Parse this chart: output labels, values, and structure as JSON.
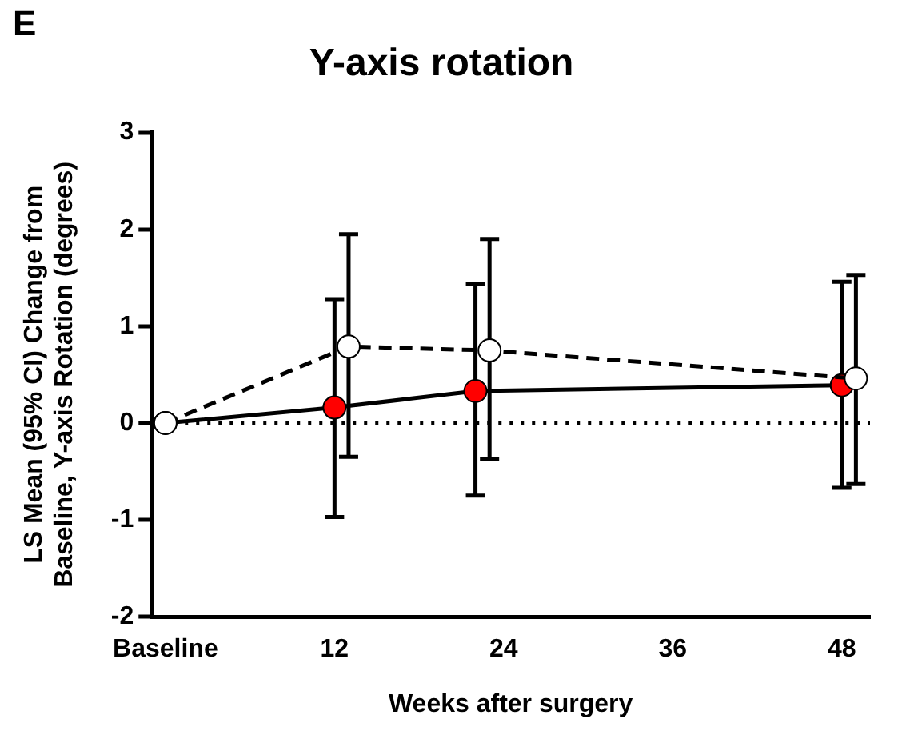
{
  "chart_data": {
    "type": "line",
    "title": "Y-axis rotation",
    "xlabel": "Weeks after surgery",
    "ylabel": "LS Mean (95% CI) Change from Baseline, Y-axis Rotation (degrees)",
    "annotations": [
      "E"
    ],
    "series": [
      {
        "color": "#ff0000",
        "line_style": "solid",
        "x": [
          0,
          12,
          22,
          48
        ],
        "values": [
          0,
          0.16,
          0.33,
          0.39
        ],
        "errors": [
          null,
          [
            -0.97,
            1.28
          ],
          [
            -0.75,
            1.44
          ],
          [
            -0.67,
            1.46
          ]
        ]
      },
      {
        "color": "#ffffff",
        "line_style": "dashed",
        "x": [
          0,
          13,
          23,
          49
        ],
        "values": [
          0,
          0.79,
          0.75,
          0.46
        ],
        "errors": [
          null,
          [
            -0.35,
            1.95
          ],
          [
            -0.37,
            1.9
          ],
          [
            -0.63,
            1.53
          ]
        ]
      }
    ],
    "xlim": [
      -1,
      50
    ],
    "xticks": [
      {
        "value": 0,
        "label": "Baseline"
      },
      12,
      24,
      36,
      48
    ],
    "ylim": [
      -2,
      3
    ],
    "yticks": [
      -2,
      -1,
      0,
      1,
      2,
      3
    ],
    "ref_lines": [
      {
        "axis": "y",
        "value": 0,
        "line_style": "dotted"
      }
    ],
    "marker": "circle",
    "grid": false,
    "legend": false
  }
}
